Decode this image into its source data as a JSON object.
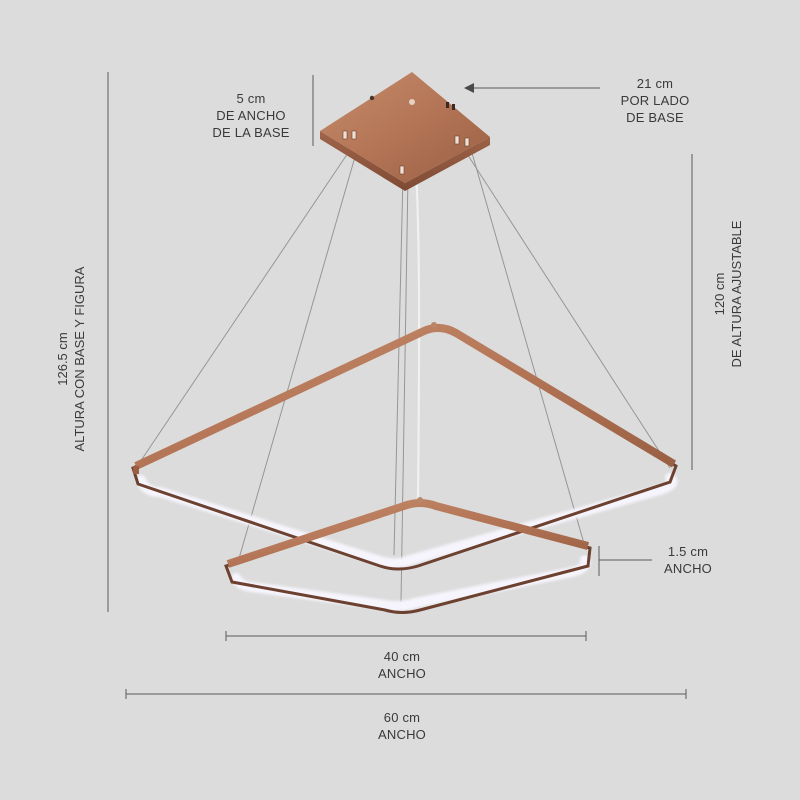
{
  "labels": {
    "base_width": {
      "value": "5 cm",
      "line1": "DE ANCHO",
      "line2": "DE LA BASE"
    },
    "base_side": {
      "value": "21 cm",
      "line1": "POR LADO",
      "line2": "DE BASE"
    },
    "adjustable_height": {
      "value": "120 cm",
      "line1": "DE ALTURA AJUSTABLE"
    },
    "total_height": {
      "value": "126.5 cm",
      "line1": "ALTURA CON BASE Y FIGURA"
    },
    "profile_width": {
      "value": "1.5 cm",
      "line1": "ANCHO"
    },
    "small_square": {
      "value": "40 cm",
      "line1": "ANCHO"
    },
    "large_square": {
      "value": "60 cm",
      "line1": "ANCHO"
    }
  },
  "colors": {
    "background": "#dcdcdc",
    "copper": "#b77a5a",
    "copper_dark": "#7a4a33",
    "led_diffuser": "#f4f2fb",
    "dimension_line": "#555555"
  }
}
